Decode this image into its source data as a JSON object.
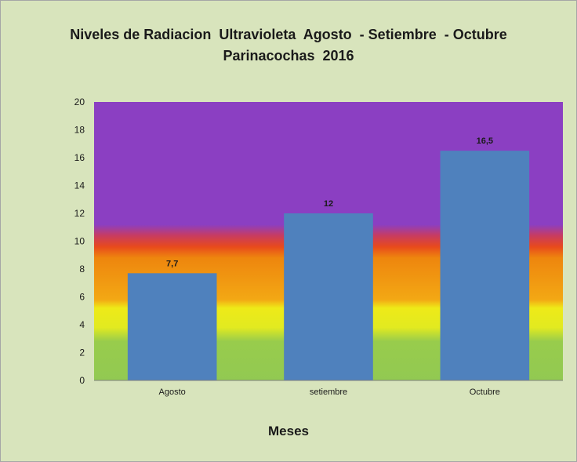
{
  "chart_data": {
    "type": "bar",
    "title_line1": "Niveles de Radiacion  Ultravioleta  Agosto  - Setiembre  - Octubre",
    "title_line2": "Parinacochas  2016",
    "xlabel": "Meses",
    "ylabel": "",
    "categories": [
      "Agosto",
      "setiembre",
      "Octubre"
    ],
    "values": [
      7.7,
      12,
      16.5
    ],
    "data_labels": [
      "7,7",
      "12",
      "16,5"
    ],
    "ylim": [
      0,
      20
    ],
    "yticks": [
      0,
      2,
      4,
      6,
      8,
      10,
      12,
      14,
      16,
      18,
      20
    ],
    "grid": false,
    "legend": "none",
    "colors": {
      "bar": "#4f81bd",
      "chart_area": "#d8e4bc",
      "uv_green": "#92c952",
      "uv_yellow": "#e8ea1a",
      "uv_orange": "#f28c0e",
      "uv_red": "#e8401c",
      "uv_violet": "#8b3fc2"
    }
  }
}
